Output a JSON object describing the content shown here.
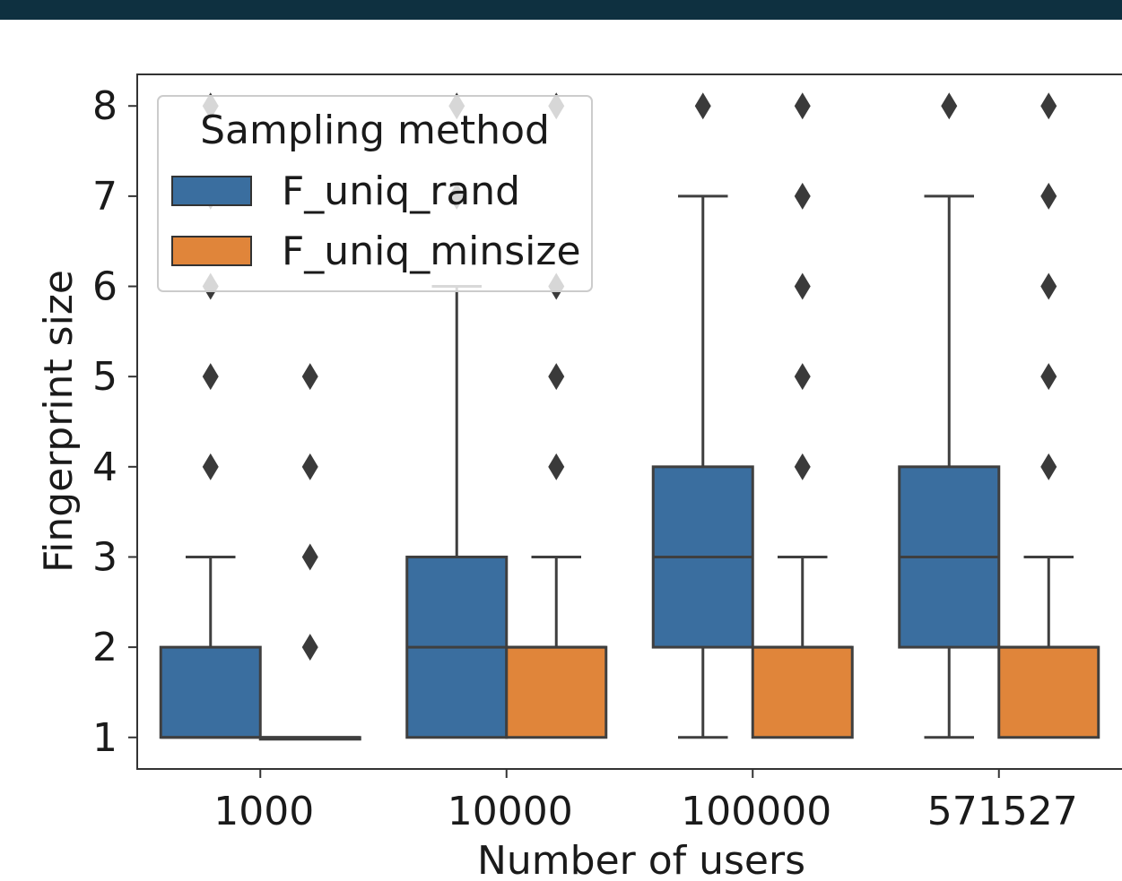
{
  "topbar": {
    "color": "#0e3040"
  },
  "chart_data": {
    "type": "boxplot",
    "xlabel": "Number of users",
    "ylabel": "Fingerprint size",
    "categories": [
      "1000",
      "10000",
      "100000",
      "571527"
    ],
    "ylim": [
      0.65,
      8.35
    ],
    "yticks": [
      "1",
      "2",
      "3",
      "4",
      "5",
      "6",
      "7",
      "8"
    ],
    "grid": false,
    "legend": {
      "title": "Sampling method",
      "placement": "upper-left"
    },
    "series": [
      {
        "name": "F_uniq_rand",
        "color": "#3a6e9f",
        "boxes": [
          {
            "category": "1000",
            "whisker_low": 1,
            "q1": 1,
            "median": 1,
            "q3": 2,
            "whisker_high": 3,
            "outliers": [
              4,
              5,
              6,
              7,
              8
            ]
          },
          {
            "category": "10000",
            "whisker_low": 1,
            "q1": 1,
            "median": 2,
            "q3": 3,
            "whisker_high": 6,
            "outliers": [
              7,
              8
            ]
          },
          {
            "category": "100000",
            "whisker_low": 1,
            "q1": 2,
            "median": 3,
            "q3": 4,
            "whisker_high": 7,
            "outliers": [
              8
            ]
          },
          {
            "category": "571527",
            "whisker_low": 1,
            "q1": 2,
            "median": 3,
            "q3": 4,
            "whisker_high": 7,
            "outliers": [
              8
            ]
          }
        ]
      },
      {
        "name": "F_uniq_minsize",
        "color": "#e0853a",
        "boxes": [
          {
            "category": "1000",
            "whisker_low": 1,
            "q1": 1,
            "median": 1,
            "q3": 1,
            "whisker_high": 1,
            "outliers": [
              2,
              3,
              4,
              5
            ]
          },
          {
            "category": "10000",
            "whisker_low": 1,
            "q1": 1,
            "median": 2,
            "q3": 2,
            "whisker_high": 3,
            "outliers": [
              4,
              5,
              6,
              8
            ]
          },
          {
            "category": "100000",
            "whisker_low": 1,
            "q1": 1,
            "median": 2,
            "q3": 2,
            "whisker_high": 3,
            "outliers": [
              4,
              5,
              6,
              7,
              8
            ]
          },
          {
            "category": "571527",
            "whisker_low": 1,
            "q1": 1,
            "median": 2,
            "q3": 2,
            "whisker_high": 3,
            "outliers": [
              4,
              5,
              6,
              7,
              8
            ]
          }
        ]
      }
    ]
  }
}
